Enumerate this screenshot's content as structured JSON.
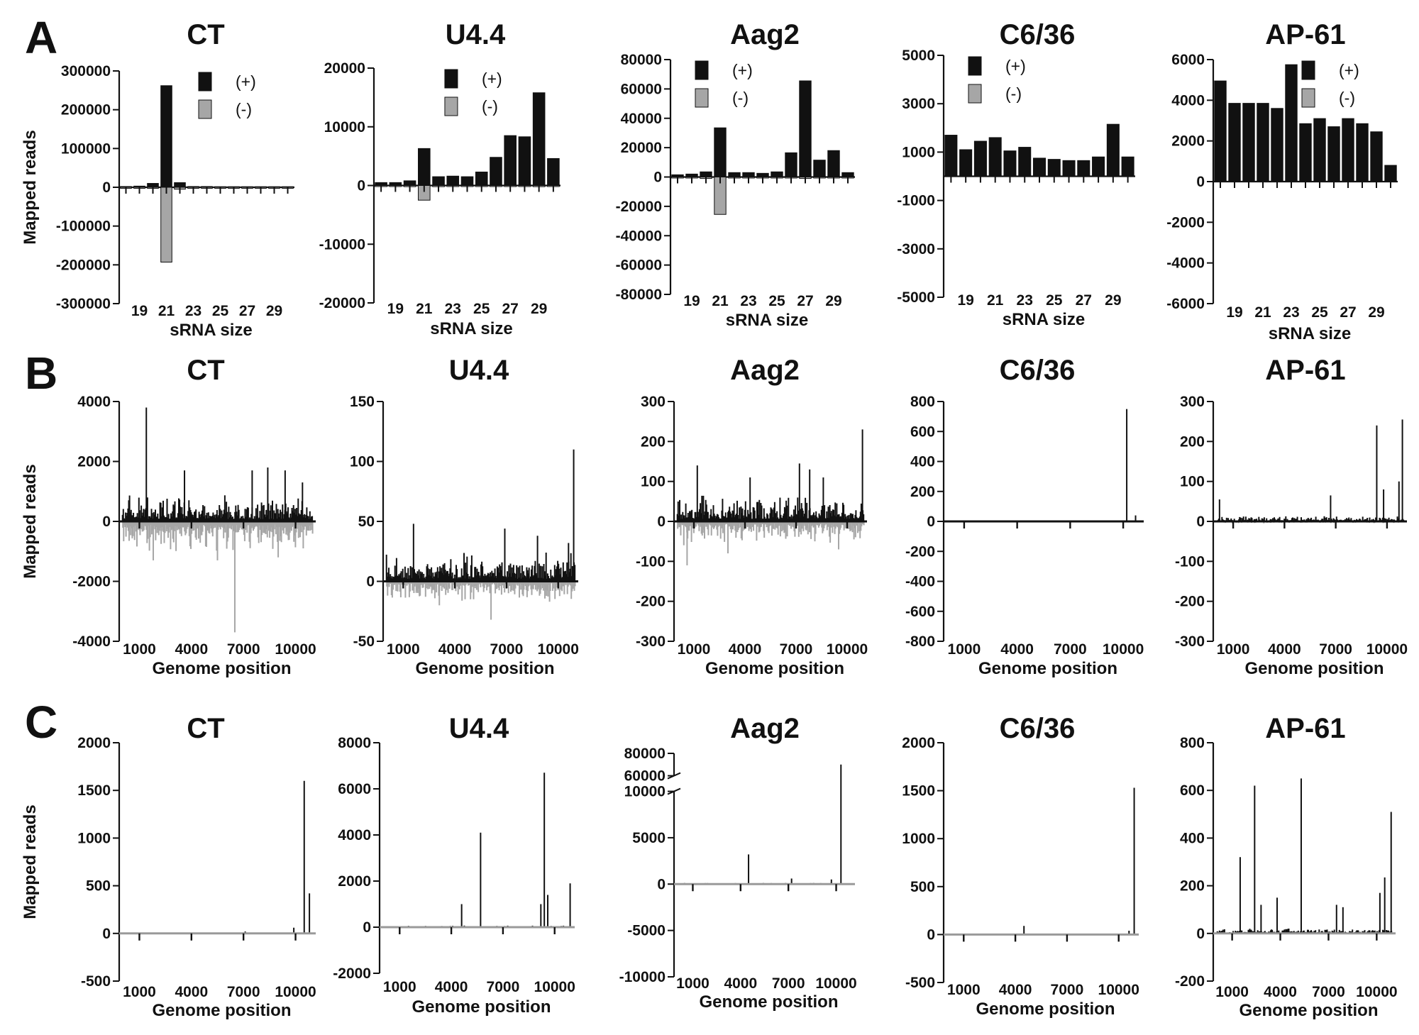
{
  "figure": {
    "row_letters": [
      "A",
      "B",
      "C"
    ]
  },
  "chart_data": [
    {
      "id": "A-CT",
      "row": "A",
      "type": "bar",
      "title": "CT",
      "xlabel": "sRNA size",
      "ylabel": "Mapped reads",
      "ylim": [
        -300000,
        300000
      ],
      "yticks": [
        -300000,
        -200000,
        -100000,
        0,
        100000,
        200000,
        300000
      ],
      "categories": [
        18,
        19,
        20,
        21,
        22,
        23,
        24,
        25,
        26,
        27,
        28,
        29,
        30
      ],
      "xtick_labels": [
        "19",
        "21",
        "23",
        "25",
        "27",
        "29"
      ],
      "legend": [
        "(+)",
        "(-)"
      ],
      "legend_position": "top-right",
      "colors": {
        "plus": "#111111",
        "minus": "#a6a6a6"
      },
      "series": [
        {
          "name": "(+)",
          "values": [
            2000,
            3000,
            10000,
            262000,
            12000,
            2000,
            2000,
            1500,
            1500,
            1500,
            1500,
            1500,
            1500
          ]
        },
        {
          "name": "(-)",
          "values": [
            -1000,
            -1000,
            -2000,
            -193000,
            -5000,
            -1000,
            -1000,
            -1000,
            -1000,
            -1000,
            -1000,
            -1000,
            -1000
          ]
        }
      ]
    },
    {
      "id": "A-U44",
      "row": "A",
      "type": "bar",
      "title": "U4.4",
      "xlabel": "sRNA size",
      "ylabel": "",
      "ylim": [
        -20000,
        20000
      ],
      "yticks": [
        -20000,
        -10000,
        0,
        10000,
        20000
      ],
      "categories": [
        18,
        19,
        20,
        21,
        22,
        23,
        24,
        25,
        26,
        27,
        28,
        29,
        30
      ],
      "xtick_labels": [
        "19",
        "21",
        "23",
        "25",
        "27",
        "29"
      ],
      "legend": [
        "(+)",
        "(-)"
      ],
      "legend_position": "top-middle",
      "colors": {
        "plus": "#111111",
        "minus": "#a6a6a6"
      },
      "series": [
        {
          "name": "(+)",
          "values": [
            500,
            500,
            800,
            6300,
            1500,
            1600,
            1500,
            2300,
            4800,
            8500,
            8300,
            15800,
            4600
          ]
        },
        {
          "name": "(-)",
          "values": [
            -100,
            -100,
            -200,
            -2500,
            -200,
            -100,
            -100,
            -100,
            -100,
            -100,
            -100,
            -200,
            -100
          ]
        }
      ]
    },
    {
      "id": "A-Aag2",
      "row": "A",
      "type": "bar",
      "title": "Aag2",
      "xlabel": "sRNA size",
      "ylabel": "",
      "ylim": [
        -80000,
        80000
      ],
      "yticks": [
        -80000,
        -60000,
        -40000,
        -20000,
        0,
        20000,
        40000,
        60000,
        80000
      ],
      "categories": [
        18,
        19,
        20,
        21,
        22,
        23,
        24,
        25,
        26,
        27,
        28,
        29,
        30
      ],
      "xtick_labels": [
        "19",
        "21",
        "23",
        "25",
        "27",
        "29"
      ],
      "legend": [
        "(+)",
        "(-)"
      ],
      "legend_position": "top-left",
      "colors": {
        "plus": "#111111",
        "minus": "#a6a6a6"
      },
      "series": [
        {
          "name": "(+)",
          "values": [
            1500,
            2000,
            3500,
            33500,
            3000,
            3000,
            2500,
            3500,
            16500,
            65500,
            11500,
            18000,
            3000
          ]
        },
        {
          "name": "(-)",
          "values": [
            -500,
            -500,
            -1000,
            -25500,
            -500,
            -500,
            -500,
            -500,
            -500,
            -1000,
            -500,
            -500,
            -500
          ]
        }
      ]
    },
    {
      "id": "A-C636",
      "row": "A",
      "type": "bar",
      "title": "C6/36",
      "xlabel": "sRNA size",
      "ylabel": "",
      "ylim": [
        -5000,
        5000
      ],
      "yticks": [
        -5000,
        -3000,
        -1000,
        1000,
        3000,
        5000
      ],
      "categories": [
        18,
        19,
        20,
        21,
        22,
        23,
        24,
        25,
        26,
        27,
        28,
        29,
        30
      ],
      "xtick_labels": [
        "19",
        "21",
        "23",
        "25",
        "27",
        "29"
      ],
      "legend": [
        "(+)",
        "(-)"
      ],
      "legend_position": "top-left",
      "colors": {
        "plus": "#111111",
        "minus": "#a6a6a6"
      },
      "series": [
        {
          "name": "(+)",
          "values": [
            1700,
            1100,
            1450,
            1600,
            1050,
            1200,
            750,
            700,
            650,
            650,
            800,
            2150,
            800
          ]
        },
        {
          "name": "(-)",
          "values": [
            0,
            0,
            0,
            0,
            0,
            0,
            0,
            0,
            0,
            0,
            0,
            0,
            0
          ]
        }
      ]
    },
    {
      "id": "A-AP61",
      "row": "A",
      "type": "bar",
      "title": "AP-61",
      "xlabel": "sRNA size",
      "ylabel": "",
      "ylim": [
        -6000,
        6000
      ],
      "yticks": [
        -6000,
        -4000,
        -2000,
        0,
        2000,
        4000,
        6000
      ],
      "categories": [
        18,
        19,
        20,
        21,
        22,
        23,
        24,
        25,
        26,
        27,
        28,
        29,
        30
      ],
      "xtick_labels": [
        "19",
        "21",
        "23",
        "25",
        "27",
        "29"
      ],
      "legend": [
        "(+)",
        "(-)"
      ],
      "legend_position": "top-right",
      "colors": {
        "plus": "#111111",
        "minus": "#a6a6a6"
      },
      "series": [
        {
          "name": "(+)",
          "values": [
            4950,
            3850,
            3850,
            3850,
            3600,
            5750,
            2850,
            3100,
            2700,
            3100,
            2850,
            2450,
            800
          ]
        },
        {
          "name": "(-)",
          "values": [
            0,
            0,
            0,
            0,
            0,
            0,
            0,
            0,
            0,
            0,
            0,
            0,
            0
          ]
        }
      ]
    },
    {
      "id": "B-CT",
      "row": "B",
      "type": "bar",
      "title": "CT",
      "xlabel": "Genome position",
      "ylabel": "Mapped reads",
      "ylim": [
        -4000,
        4000
      ],
      "yticks": [
        -4000,
        -2000,
        0,
        2000,
        4000
      ],
      "xlim": [
        0,
        11000
      ],
      "xticks": [
        1000,
        4000,
        7000,
        10000
      ],
      "xtick_labels": [
        "1000",
        "4000",
        "7000",
        "10000"
      ],
      "profile": {
        "plus_base": 500,
        "minus_base": -700,
        "plus_color": "#111111",
        "minus_color": "#a6a6a6",
        "plus_peaks": [
          [
            1400,
            3800
          ],
          [
            3600,
            1700
          ],
          [
            7500,
            1700
          ],
          [
            8400,
            1800
          ],
          [
            9400,
            1700
          ],
          [
            10400,
            1300
          ]
        ],
        "minus_peaks": [
          [
            6500,
            -3700
          ],
          [
            1800,
            -1300
          ],
          [
            5500,
            -1300
          ],
          [
            9000,
            -1200
          ]
        ]
      }
    },
    {
      "id": "B-U44",
      "row": "B",
      "type": "bar",
      "title": "U4.4",
      "xlabel": "Genome position",
      "ylabel": "",
      "ylim": [
        -50,
        150
      ],
      "yticks": [
        -50,
        0,
        50,
        100,
        150
      ],
      "xlim": [
        0,
        11000
      ],
      "xticks": [
        1000,
        4000,
        7000,
        10000
      ],
      "xtick_labels": [
        "1000",
        "4000",
        "7000",
        "10000"
      ],
      "profile": {
        "plus_base": 14,
        "minus_base": -10,
        "plus_color": "#111111",
        "minus_color": "#a6a6a6",
        "plus_peaks": [
          [
            10900,
            110
          ],
          [
            1600,
            48
          ],
          [
            6900,
            44
          ],
          [
            8800,
            38
          ],
          [
            10600,
            32
          ]
        ],
        "minus_peaks": [
          [
            6100,
            -32
          ],
          [
            3100,
            -20
          ],
          [
            9500,
            -17
          ]
        ]
      }
    },
    {
      "id": "B-Aag2",
      "row": "B",
      "type": "bar",
      "title": "Aag2",
      "xlabel": "Genome position",
      "ylabel": "",
      "ylim": [
        -300,
        300
      ],
      "yticks": [
        -300,
        -200,
        -100,
        0,
        100,
        200,
        300
      ],
      "xlim": [
        0,
        11000
      ],
      "xticks": [
        1000,
        4000,
        7000,
        10000
      ],
      "xtick_labels": [
        "1000",
        "4000",
        "7000",
        "10000"
      ],
      "profile": {
        "plus_base": 40,
        "minus_base": -35,
        "plus_color": "#111111",
        "minus_color": "#a6a6a6",
        "plus_peaks": [
          [
            10900,
            230
          ],
          [
            7200,
            145
          ],
          [
            1200,
            140
          ],
          [
            7800,
            130
          ],
          [
            4300,
            110
          ],
          [
            8600,
            110
          ]
        ],
        "minus_peaks": [
          [
            600,
            -110
          ],
          [
            3000,
            -80
          ],
          [
            9500,
            -70
          ]
        ]
      }
    },
    {
      "id": "B-C636",
      "row": "B",
      "type": "bar",
      "title": "C6/36",
      "xlabel": "Genome position",
      "ylabel": "",
      "ylim": [
        -800,
        800
      ],
      "yticks": [
        -800,
        -600,
        -400,
        -200,
        0,
        200,
        400,
        600,
        800
      ],
      "xlim": [
        0,
        11000
      ],
      "xticks": [
        1000,
        4000,
        7000,
        10000
      ],
      "xtick_labels": [
        "1000",
        "4000",
        "7000",
        "10000"
      ],
      "profile": {
        "plus_base": 4,
        "minus_base": -3,
        "plus_color": "#111111",
        "minus_color": "#a6a6a6",
        "plus_peaks": [
          [
            10200,
            750
          ],
          [
            10700,
            40
          ]
        ],
        "minus_peaks": []
      }
    },
    {
      "id": "B-AP61",
      "row": "B",
      "type": "bar",
      "title": "AP-61",
      "xlabel": "Genome position",
      "ylabel": "",
      "ylim": [
        -300,
        300
      ],
      "yticks": [
        -300,
        -200,
        -100,
        0,
        100,
        200,
        300
      ],
      "xlim": [
        0,
        11000
      ],
      "xticks": [
        1000,
        4000,
        7000,
        10000
      ],
      "xtick_labels": [
        "1000",
        "4000",
        "7000",
        "10000"
      ],
      "profile": {
        "plus_base": 8,
        "minus_base": -3,
        "plus_color": "#111111",
        "minus_color": "#a6a6a6",
        "plus_peaks": [
          [
            9400,
            240
          ],
          [
            10900,
            255
          ],
          [
            9800,
            80
          ],
          [
            10700,
            100
          ],
          [
            6700,
            65
          ],
          [
            200,
            55
          ]
        ],
        "minus_peaks": []
      }
    },
    {
      "id": "C-CT",
      "row": "C",
      "type": "bar",
      "title": "CT",
      "xlabel": "Genome position",
      "ylabel": "Mapped reads",
      "ylim": [
        -500,
        2000
      ],
      "yticks": [
        -500,
        0,
        500,
        1000,
        1500,
        2000
      ],
      "xlim": [
        0,
        11000
      ],
      "xticks": [
        1000,
        4000,
        7000,
        10000
      ],
      "xtick_labels": [
        "1000",
        "4000",
        "7000",
        "10000"
      ],
      "profile": {
        "plus_base": 3,
        "minus_base": -3,
        "plus_color": "#111111",
        "minus_color": "#a6a6a6",
        "plus_peaks": [
          [
            10500,
            1600
          ],
          [
            10800,
            420
          ],
          [
            9900,
            60
          ],
          [
            7100,
            20
          ]
        ],
        "minus_peaks": []
      }
    },
    {
      "id": "C-U44",
      "row": "C",
      "type": "bar",
      "title": "U4.4",
      "xlabel": "Genome position",
      "ylabel": "",
      "ylim": [
        -2000,
        8000
      ],
      "yticks": [
        -2000,
        0,
        2000,
        4000,
        6000,
        8000
      ],
      "xlim": [
        0,
        11000
      ],
      "xticks": [
        1000,
        4000,
        7000,
        10000
      ],
      "xtick_labels": [
        "1000",
        "4000",
        "7000",
        "10000"
      ],
      "profile": {
        "plus_base": 40,
        "minus_base": -20,
        "plus_color": "#111111",
        "minus_color": "#a6a6a6",
        "plus_peaks": [
          [
            5700,
            4100
          ],
          [
            9400,
            6700
          ],
          [
            9600,
            1400
          ],
          [
            10900,
            1900
          ],
          [
            4600,
            1000
          ],
          [
            9200,
            1000
          ]
        ],
        "minus_peaks": []
      }
    },
    {
      "id": "C-Aag2",
      "row": "C",
      "type": "bar",
      "title": "Aag2",
      "xlabel": "Genome position",
      "ylabel": "",
      "ylim": [
        -10000,
        80000
      ],
      "yticks": [
        -10000,
        -5000,
        0,
        5000,
        10000,
        60000,
        80000
      ],
      "y_break": [
        10000,
        60000
      ],
      "xlim": [
        0,
        11000
      ],
      "xticks": [
        1000,
        4000,
        7000,
        10000
      ],
      "xtick_labels": [
        "1000",
        "4000",
        "7000",
        "10000"
      ],
      "profile": {
        "plus_base": 80,
        "minus_base": -60,
        "plus_color": "#111111",
        "minus_color": "#a6a6a6",
        "plus_peaks": [
          [
            10300,
            70000
          ],
          [
            4500,
            3200
          ],
          [
            7200,
            600
          ],
          [
            9700,
            500
          ]
        ],
        "minus_peaks": []
      }
    },
    {
      "id": "C-C636",
      "row": "C",
      "type": "bar",
      "title": "C6/36",
      "xlabel": "Genome position",
      "ylabel": "",
      "ylim": [
        -500,
        2000
      ],
      "yticks": [
        -500,
        0,
        500,
        1000,
        1500,
        2000
      ],
      "xlim": [
        0,
        11000
      ],
      "xticks": [
        1000,
        4000,
        7000,
        10000
      ],
      "xtick_labels": [
        "1000",
        "4000",
        "7000",
        "10000"
      ],
      "profile": {
        "plus_base": 3,
        "minus_base": -3,
        "plus_color": "#111111",
        "minus_color": "#a6a6a6",
        "plus_peaks": [
          [
            10900,
            1530
          ],
          [
            4500,
            90
          ],
          [
            10600,
            40
          ]
        ],
        "minus_peaks": []
      }
    },
    {
      "id": "C-AP61",
      "row": "C",
      "type": "bar",
      "title": "AP-61",
      "xlabel": "Genome position",
      "ylabel": "",
      "ylim": [
        -200,
        800
      ],
      "yticks": [
        -200,
        0,
        200,
        400,
        600,
        800
      ],
      "xlim": [
        0,
        11000
      ],
      "xticks": [
        1000,
        4000,
        7000,
        10000
      ],
      "xtick_labels": [
        "1000",
        "4000",
        "7000",
        "10000"
      ],
      "profile": {
        "plus_base": 12,
        "minus_base": -2,
        "plus_color": "#111111",
        "minus_color": "#a6a6a6",
        "plus_peaks": [
          [
            5300,
            650
          ],
          [
            2400,
            620
          ],
          [
            1500,
            320
          ],
          [
            10900,
            510
          ],
          [
            10500,
            235
          ],
          [
            3800,
            150
          ],
          [
            2800,
            120
          ],
          [
            7500,
            120
          ],
          [
            7900,
            110
          ],
          [
            10200,
            170
          ]
        ],
        "minus_peaks": []
      }
    }
  ]
}
